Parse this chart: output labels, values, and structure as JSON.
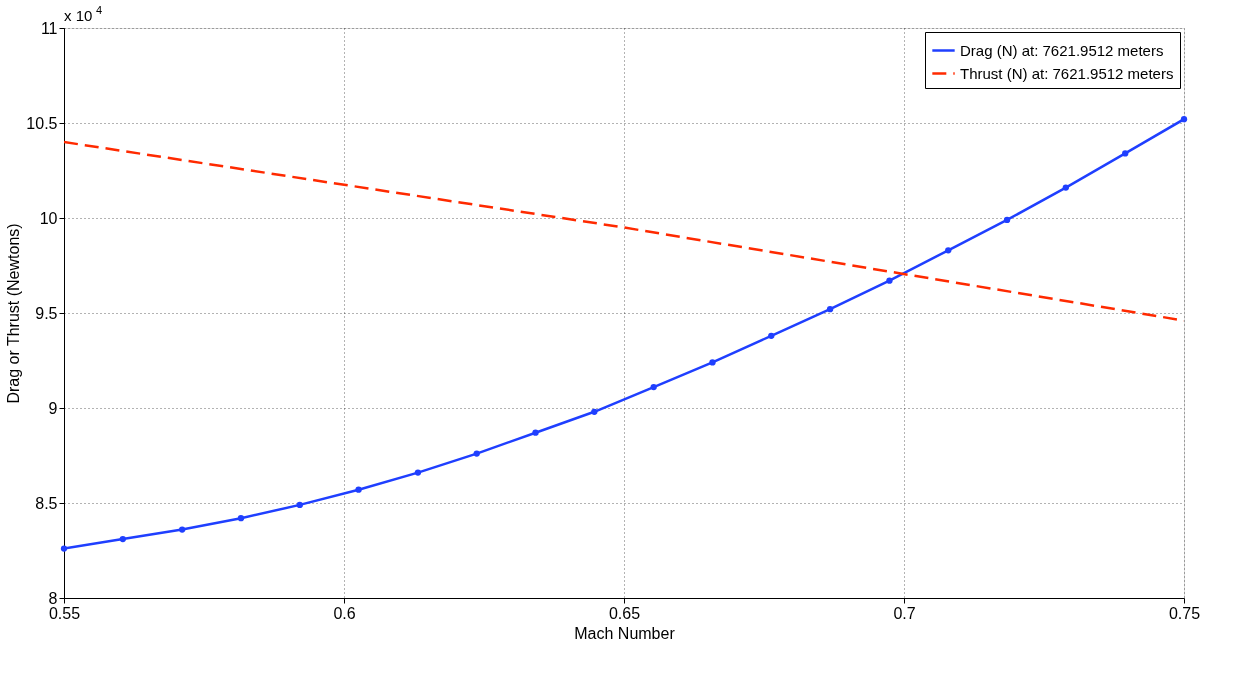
{
  "chart_data": {
    "type": "line",
    "xlabel": "Mach Number",
    "ylabel": "Drag or Thrust (Newtons)",
    "annotations": [
      "x 10$^{4}$"
    ],
    "series": [
      {
        "name": "Drag (N) at: 7621.9512 meters",
        "color": "#1f3fff",
        "marker": "circle",
        "line_style": "solid",
        "x": [
          0.55,
          0.5605,
          0.5711,
          0.5816,
          0.5921,
          0.6026,
          0.6132,
          0.6237,
          0.6342,
          0.6447,
          0.6553,
          0.6658,
          0.6763,
          0.6868,
          0.6974,
          0.7079,
          0.7184,
          0.7289,
          0.7395,
          0.75
        ],
        "values": [
          8.26,
          8.31,
          8.36,
          8.42,
          8.49,
          8.57,
          8.66,
          8.76,
          8.87,
          8.98,
          9.11,
          9.24,
          9.38,
          9.52,
          9.67,
          9.83,
          9.99,
          10.16,
          10.34,
          10.52
        ]
      },
      {
        "name": "Thrust (N) at: 7621.9512 meters",
        "color": "#ff2a00",
        "marker": "none",
        "line_style": "dashed",
        "x": [
          0.55,
          0.65,
          0.75
        ],
        "values": [
          10.4,
          9.95,
          9.46
        ]
      }
    ],
    "xlim": [
      0.55,
      0.75
    ],
    "xticks": [
      0.55,
      0.6,
      0.65,
      0.7,
      0.75
    ],
    "ylim": [
      8,
      11
    ],
    "yticks": [
      8,
      8.5,
      9,
      9.5,
      10,
      10.5,
      11
    ],
    "grid": true,
    "legend": "top right"
  }
}
